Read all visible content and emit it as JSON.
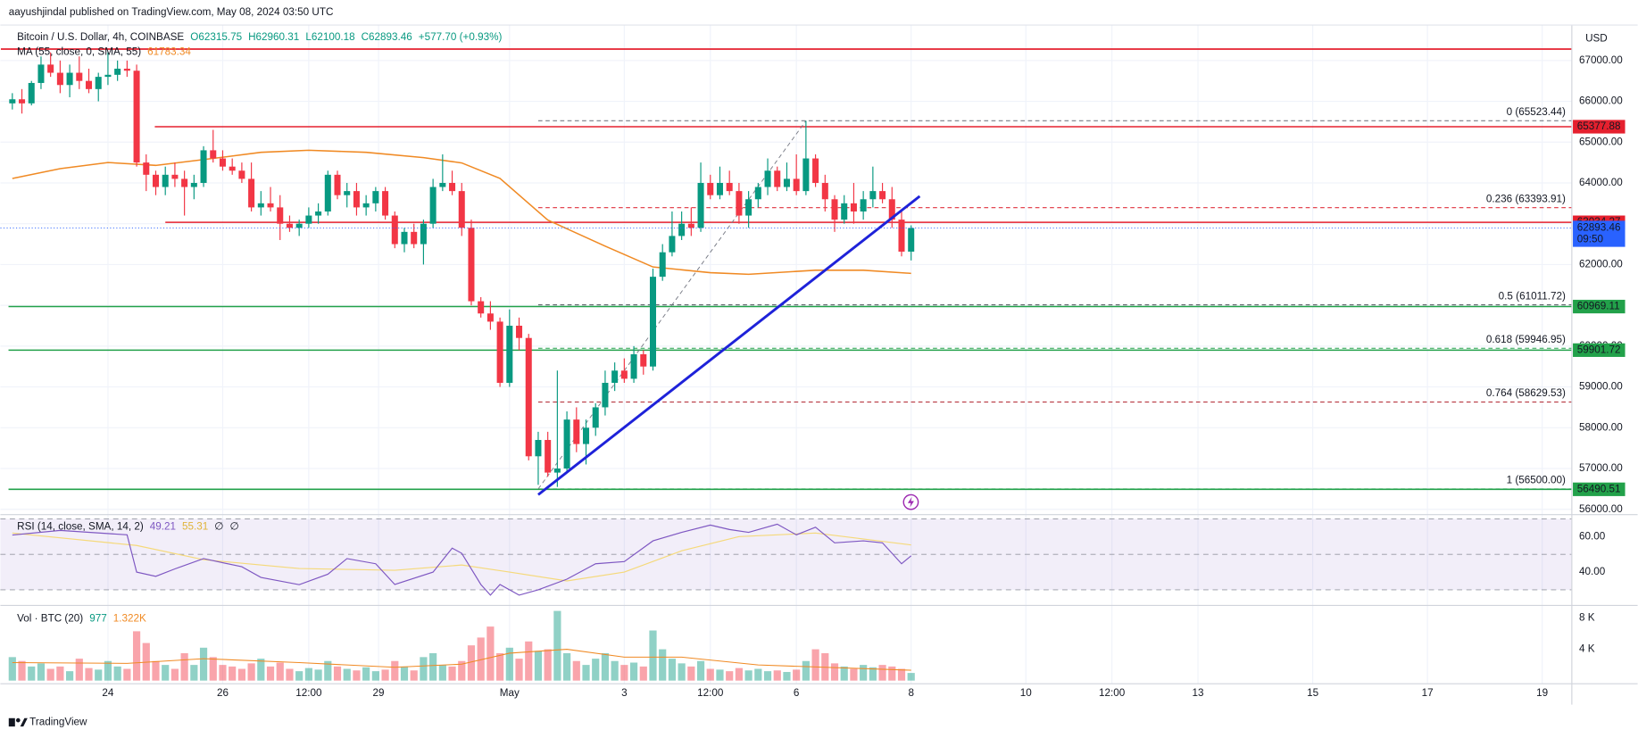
{
  "chart_data": {
    "type": "candlestick",
    "published": "aayushjindal published on TradingView.com, May 08, 2024 03:50 UTC",
    "title": "Bitcoin / U.S. Dollar, 4h, COINBASE",
    "ohlc_labels": [
      "O62315.75",
      "H62960.31",
      "L62100.18",
      "C62893.46"
    ],
    "change": "+577.70 (+0.93%)",
    "currency": "USD",
    "countdown": "09:50",
    "footer": "TradingView",
    "up_color": "#089981",
    "down_color": "#f23645",
    "xlim": [
      -1.25,
      163.1
    ],
    "xticks": [
      {
        "value": 10,
        "label": "24"
      },
      {
        "value": 22,
        "label": "26"
      },
      {
        "value": 31,
        "label": "12:00"
      },
      {
        "value": 38.3,
        "label": "29"
      },
      {
        "value": 52,
        "label": "May"
      },
      {
        "value": 64,
        "label": "3"
      },
      {
        "value": 73,
        "label": "12:00"
      },
      {
        "value": 82,
        "label": "6"
      },
      {
        "value": 94,
        "label": "8"
      },
      {
        "value": 106,
        "label": "10"
      },
      {
        "value": 115,
        "label": "12:00"
      },
      {
        "value": 124,
        "label": "13"
      },
      {
        "value": 136,
        "label": "15"
      },
      {
        "value": 148,
        "label": "17"
      },
      {
        "value": 160,
        "label": "19"
      }
    ],
    "ylim": [
      55870,
      67460
    ],
    "yticks": [
      {
        "value": 56000,
        "label": "56000.00"
      },
      {
        "value": 57000,
        "label": "57000.00"
      },
      {
        "value": 58000,
        "label": "58000.00"
      },
      {
        "value": 59000,
        "label": "59000.00"
      },
      {
        "value": 60000,
        "label": "60000.00"
      },
      {
        "value": 61000,
        "label": "61000.00"
      },
      {
        "value": 62000,
        "label": "62000.00"
      },
      {
        "value": 63000,
        "label": "63000.00"
      },
      {
        "value": 64000,
        "label": "64000.00"
      },
      {
        "value": 65000,
        "label": "65000.00"
      },
      {
        "value": 66000,
        "label": "66000.00"
      },
      {
        "value": 67000,
        "label": "67000.00"
      }
    ],
    "ohlc": [
      [
        65950,
        66200,
        65800,
        66050
      ],
      [
        66050,
        66300,
        65700,
        65950
      ],
      [
        65950,
        66500,
        65900,
        66450
      ],
      [
        66450,
        67100,
        66300,
        66900
      ],
      [
        66900,
        67200,
        66600,
        66700
      ],
      [
        66700,
        67000,
        66200,
        66400
      ],
      [
        66400,
        66900,
        66100,
        66700
      ],
      [
        66700,
        67100,
        66300,
        66500
      ],
      [
        66500,
        66800,
        66200,
        66300
      ],
      [
        66300,
        66700,
        66000,
        66600
      ],
      [
        66600,
        67200,
        66400,
        66650
      ],
      [
        66650,
        67000,
        66500,
        66800
      ],
      [
        66800,
        67000,
        66600,
        66750
      ],
      [
        66750,
        66900,
        64400,
        64500
      ],
      [
        64500,
        64700,
        63800,
        64200
      ],
      [
        64200,
        64300,
        63700,
        63900
      ],
      [
        63900,
        64400,
        63700,
        64200
      ],
      [
        64200,
        64500,
        63900,
        64100
      ],
      [
        64100,
        64300,
        63200,
        63900
      ],
      [
        63900,
        64200,
        63600,
        64000
      ],
      [
        64000,
        64900,
        63900,
        64800
      ],
      [
        64800,
        65300,
        64500,
        64600
      ],
      [
        64600,
        64800,
        64300,
        64400
      ],
      [
        64400,
        64600,
        64200,
        64300
      ],
      [
        64300,
        64500,
        64000,
        64100
      ],
      [
        64100,
        64500,
        63300,
        63400
      ],
      [
        63400,
        63800,
        63200,
        63500
      ],
      [
        63500,
        63900,
        63300,
        63400
      ],
      [
        63400,
        63700,
        62600,
        63000
      ],
      [
        63000,
        63200,
        62800,
        62900
      ],
      [
        62900,
        63100,
        62700,
        63000
      ],
      [
        63000,
        63400,
        62900,
        63200
      ],
      [
        63200,
        63500,
        63000,
        63300
      ],
      [
        63300,
        64300,
        63200,
        64200
      ],
      [
        64200,
        64300,
        63600,
        63700
      ],
      [
        63700,
        64000,
        63400,
        63800
      ],
      [
        63800,
        64000,
        63200,
        63400
      ],
      [
        63400,
        63700,
        63200,
        63500
      ],
      [
        63500,
        63900,
        63300,
        63800
      ],
      [
        63800,
        63900,
        63100,
        63200
      ],
      [
        63200,
        63300,
        62400,
        62500
      ],
      [
        62500,
        62900,
        62300,
        62800
      ],
      [
        62800,
        63000,
        62400,
        62500
      ],
      [
        62500,
        63100,
        62000,
        63000
      ],
      [
        63000,
        64100,
        62900,
        63900
      ],
      [
        63900,
        64700,
        63800,
        64000
      ],
      [
        64000,
        64300,
        63700,
        63800
      ],
      [
        63800,
        64000,
        62700,
        62900
      ],
      [
        62900,
        63100,
        61000,
        61100
      ],
      [
        61100,
        61200,
        60700,
        60800
      ],
      [
        60800,
        61100,
        60400,
        60600
      ],
      [
        60600,
        60700,
        59000,
        59100
      ],
      [
        59100,
        60900,
        59000,
        60500
      ],
      [
        60500,
        60700,
        59900,
        60200
      ],
      [
        60200,
        60300,
        57200,
        57300
      ],
      [
        57300,
        57900,
        56600,
        57700
      ],
      [
        57700,
        57900,
        56800,
        56900
      ],
      [
        56900,
        59400,
        56550,
        57000
      ],
      [
        57000,
        58400,
        56900,
        58200
      ],
      [
        58200,
        58500,
        57400,
        57600
      ],
      [
        57600,
        58200,
        57100,
        58000
      ],
      [
        58000,
        58600,
        57800,
        58500
      ],
      [
        58500,
        59400,
        58300,
        59100
      ],
      [
        59100,
        59600,
        58900,
        59400
      ],
      [
        59400,
        59700,
        59100,
        59200
      ],
      [
        59200,
        60000,
        59100,
        59800
      ],
      [
        59800,
        59900,
        59300,
        59500
      ],
      [
        59500,
        61900,
        59400,
        61700
      ],
      [
        61700,
        62500,
        61600,
        62300
      ],
      [
        62300,
        63300,
        62200,
        62700
      ],
      [
        62700,
        63300,
        62600,
        63000
      ],
      [
        63000,
        63400,
        62700,
        62900
      ],
      [
        62900,
        64500,
        62800,
        64000
      ],
      [
        64000,
        64200,
        63600,
        63700
      ],
      [
        63700,
        64400,
        63600,
        64000
      ],
      [
        64000,
        64300,
        63700,
        63800
      ],
      [
        63800,
        64000,
        63000,
        63200
      ],
      [
        63200,
        63800,
        62900,
        63600
      ],
      [
        63600,
        64000,
        63400,
        63900
      ],
      [
        63900,
        64600,
        63700,
        64300
      ],
      [
        64300,
        64400,
        63800,
        63900
      ],
      [
        63900,
        64500,
        63800,
        64100
      ],
      [
        64100,
        64700,
        63700,
        63800
      ],
      [
        63800,
        65523,
        63700,
        64600
      ],
      [
        64600,
        64700,
        63900,
        64000
      ],
      [
        64000,
        64200,
        63300,
        63600
      ],
      [
        63600,
        63700,
        62800,
        63100
      ],
      [
        63100,
        63700,
        63000,
        63500
      ],
      [
        63500,
        64000,
        63000,
        63300
      ],
      [
        63300,
        63800,
        63100,
        63600
      ],
      [
        63600,
        64400,
        63400,
        63800
      ],
      [
        63800,
        64000,
        63500,
        63600
      ],
      [
        63600,
        63900,
        62900,
        63100
      ],
      [
        63100,
        63300,
        62200,
        62315
      ],
      [
        62315.75,
        62960.31,
        62100.18,
        62893.46
      ]
    ],
    "ma": {
      "name": "MA (55, close, 0, SMA, 55)",
      "color": "#f08a24",
      "x": [
        0,
        5,
        10,
        15,
        21,
        26,
        31,
        37,
        43,
        47,
        51,
        56,
        62,
        67,
        73,
        77,
        84,
        89,
        94
      ],
      "values": [
        64110,
        64350,
        64500,
        64430,
        64600,
        64750,
        64800,
        64750,
        64620,
        64490,
        64110,
        63090,
        62450,
        61940,
        61800,
        61760,
        61860,
        61860,
        61783.34
      ]
    },
    "top_line": {
      "value": 67280,
      "from": -1.2,
      "color": "#e5202e"
    },
    "levels": [
      {
        "value": 65377.88,
        "from": 14.9,
        "color": "#e5202e"
      },
      {
        "value": 63034.27,
        "from": 16,
        "color": "#e5202e"
      },
      {
        "value": 60969.11,
        "from": -0.4,
        "color": "#22a14a"
      },
      {
        "value": 59901.72,
        "from": -0.4,
        "color": "#22a14a"
      },
      {
        "value": 56490.51,
        "from": -0.4,
        "color": "#22a14a"
      }
    ],
    "fib": {
      "x": [
        55,
        83
      ],
      "color": "#787b86",
      "levels": [
        {
          "label": "0 (65523.44)",
          "value": 65523.44,
          "color": "#787b86"
        },
        {
          "label": "0.236 (63393.91)",
          "value": 63393.91,
          "color": "#e0323f"
        },
        {
          "label": "0.5 (61011.72)",
          "value": 61011.72,
          "color": "#4a4d57"
        },
        {
          "label": "0.618 (59946.95)",
          "value": 59946.95,
          "color": "#22a14a"
        },
        {
          "label": "0.764 (58629.53)",
          "value": 58629.53,
          "color": "#b22833"
        },
        {
          "label": "1 (56500.00)",
          "value": 56500,
          "color": "#22a14a"
        }
      ]
    },
    "trendline": {
      "x": [
        55,
        94.9
      ],
      "values": [
        56358,
        63674
      ],
      "color": "#1e22d9"
    },
    "rsi": {
      "name": "RSI (14, close, SMA, 14, 2)",
      "color": "#7e57c2",
      "ylim": [
        21.2,
        72.4
      ],
      "yticks": [
        {
          "value": 60,
          "label": "60.00"
        },
        {
          "value": 40,
          "label": "40.00"
        }
      ],
      "levels": [
        70,
        50,
        30
      ],
      "na_labels": [
        "∅",
        "∅"
      ],
      "x": [
        0,
        5,
        12,
        13,
        15,
        17,
        20,
        24,
        26,
        30,
        33,
        35,
        38,
        40,
        44,
        46,
        47,
        49,
        50,
        51,
        53,
        55,
        58,
        61,
        64,
        67,
        70,
        73,
        75,
        77,
        80,
        82,
        84,
        86,
        89,
        91,
        93,
        94
      ],
      "values": [
        60.9,
        63.5,
        61,
        40,
        37.6,
        41.8,
        47.6,
        43,
        37,
        32.9,
        38.8,
        47.6,
        44.7,
        33,
        40,
        53.5,
        50.6,
        33,
        27,
        33,
        27,
        30,
        36,
        44.7,
        45.9,
        57.6,
        62.4,
        66.5,
        64,
        62.4,
        67,
        61,
        65.3,
        56.5,
        57.6,
        56.5,
        44.7,
        49.21
      ],
      "ma": {
        "color": "#f5d97a",
        "x": [
          0,
          13,
          20,
          30,
          40,
          47,
          52,
          58,
          64,
          70,
          76,
          84,
          90,
          94
        ],
        "values": [
          62,
          55,
          47,
          42,
          41,
          44,
          40,
          35,
          40,
          52,
          60,
          62,
          58,
          55.31
        ]
      }
    },
    "volume": {
      "name": "Vol · BTC (20)",
      "ylim": [
        0,
        9200
      ],
      "yticks": [
        {
          "value": 8000,
          "label": "8 K"
        },
        {
          "value": 4000,
          "label": "4 K"
        }
      ],
      "values": [
        3000,
        2500,
        1800,
        2200,
        1500,
        1800,
        1200,
        2800,
        1600,
        1400,
        2500,
        1800,
        1500,
        6300,
        4800,
        2500,
        2000,
        1500,
        3500,
        2000,
        4200,
        3000,
        2000,
        1800,
        1500,
        2200,
        2800,
        1800,
        2300,
        1500,
        1200,
        1600,
        1400,
        2500,
        1800,
        1500,
        1300,
        1700,
        1200,
        1400,
        2500,
        1800,
        1300,
        3000,
        3500,
        2000,
        1800,
        2500,
        4500,
        5500,
        6900,
        3500,
        4200,
        2800,
        5000,
        3800,
        4000,
        8900,
        3500,
        2500,
        2000,
        2800,
        3500,
        2500,
        2000,
        2300,
        1800,
        6400,
        4000,
        2800,
        2200,
        1800,
        2500,
        1500,
        1400,
        1200,
        1600,
        1300,
        1500,
        1200,
        1300,
        1100,
        1400,
        2500,
        4000,
        3500,
        2200,
        1800,
        1500,
        2000,
        1700,
        2000,
        1800,
        1500,
        977
      ],
      "ma": {
        "color": "#f08a24",
        "x": [
          0,
          12,
          20,
          30,
          40,
          47,
          52,
          58,
          64,
          70,
          78,
          85,
          94
        ],
        "values": [
          2300,
          2200,
          2800,
          2300,
          1700,
          2100,
          3500,
          4000,
          3000,
          3000,
          2000,
          1700,
          1322
        ],
        "value_labels": [
          null,
          null,
          null,
          null,
          null,
          null,
          null,
          null,
          null,
          null,
          null,
          null,
          "1.322K"
        ]
      }
    }
  }
}
